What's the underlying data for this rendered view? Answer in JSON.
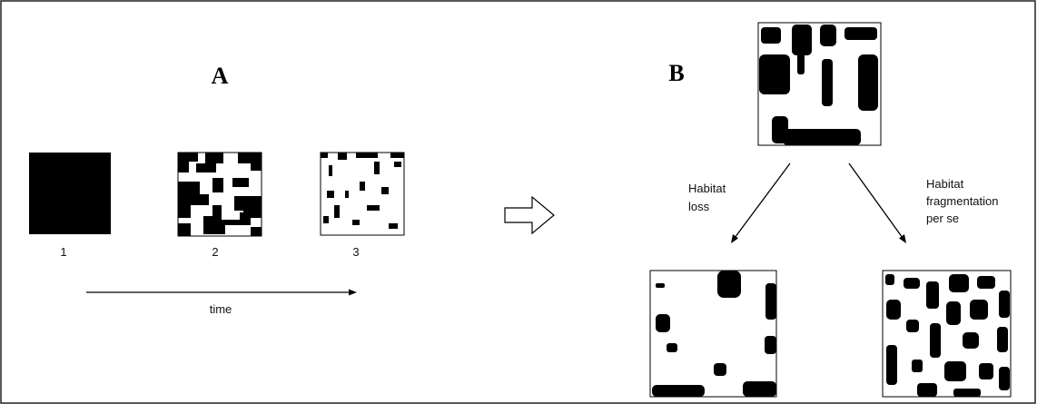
{
  "panel_a": {
    "label": "A",
    "steps": [
      "1",
      "2",
      "3"
    ],
    "axis_label": "time"
  },
  "panel_b": {
    "label": "B",
    "branches": [
      [
        "Habitat",
        "loss"
      ],
      [
        "Habitat",
        "fragmentation",
        "per se"
      ]
    ]
  }
}
